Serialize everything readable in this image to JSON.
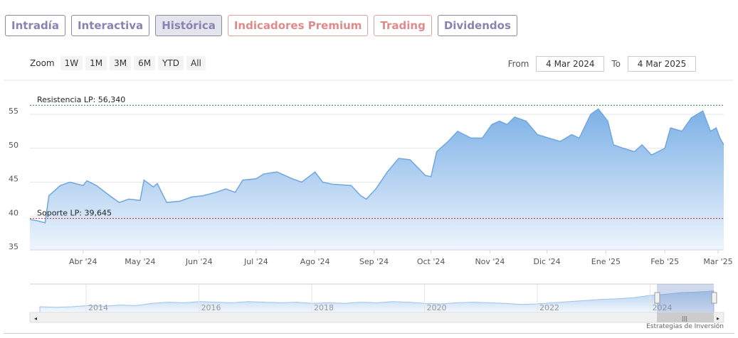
{
  "tabs": [
    {
      "label": "Intradía",
      "style": "normal"
    },
    {
      "label": "Interactiva",
      "style": "normal"
    },
    {
      "label": "Histórica",
      "style": "active"
    },
    {
      "label": "Indicadores Premium",
      "style": "red"
    },
    {
      "label": "Trading",
      "style": "red"
    },
    {
      "label": "Dividendos",
      "style": "normal"
    }
  ],
  "zoom": {
    "label": "Zoom",
    "buttons": [
      "1W",
      "1M",
      "3M",
      "6M",
      "YTD",
      "All"
    ]
  },
  "range": {
    "from_label": "From",
    "from_value": "4 Mar 2024",
    "to_label": "To",
    "to_value": "4 Mar 2025"
  },
  "credit": "Estrategias de Inversión",
  "chart_data": {
    "type": "area",
    "start": "2024-03-04",
    "end": "2025-03-04",
    "ylim": [
      35,
      57
    ],
    "yticks": [
      35,
      40,
      45,
      50,
      55
    ],
    "xticks": [
      {
        "date": "2024-04-01",
        "label": "Abr '24"
      },
      {
        "date": "2024-05-01",
        "label": "May '24"
      },
      {
        "date": "2024-06-01",
        "label": "Jun '24"
      },
      {
        "date": "2024-07-01",
        "label": "Jul '24"
      },
      {
        "date": "2024-08-01",
        "label": "Ago '24"
      },
      {
        "date": "2024-09-01",
        "label": "Sep '24"
      },
      {
        "date": "2024-10-01",
        "label": "Oct '24"
      },
      {
        "date": "2024-11-01",
        "label": "Nov '24"
      },
      {
        "date": "2024-12-01",
        "label": "Dic '24"
      },
      {
        "date": "2025-01-01",
        "label": "Ene '25"
      },
      {
        "date": "2025-02-01",
        "label": "Feb '25"
      },
      {
        "date": "2025-03-01",
        "label": "Mar '25"
      }
    ],
    "lines": [
      {
        "label": "Resistencia LP: 56,340",
        "value": 56.34,
        "color": "#2e7d32"
      },
      {
        "label": "Soporte LP: 39,645",
        "value": 39.645,
        "color": "#c62828"
      }
    ],
    "series": [
      [
        "2024-03-04",
        39.5
      ],
      [
        "2024-03-08",
        39.3
      ],
      [
        "2024-03-12",
        39.0
      ],
      [
        "2024-03-14",
        43
      ],
      [
        "2024-03-20",
        44.5
      ],
      [
        "2024-03-25",
        45
      ],
      [
        "2024-04-01",
        44.5
      ],
      [
        "2024-04-03",
        45.2
      ],
      [
        "2024-04-08",
        44.5
      ],
      [
        "2024-04-15",
        43
      ],
      [
        "2024-04-20",
        42
      ],
      [
        "2024-04-25",
        42.5
      ],
      [
        "2024-05-01",
        42.3
      ],
      [
        "2024-05-03",
        45.3
      ],
      [
        "2024-05-08",
        44.3
      ],
      [
        "2024-05-10",
        44.8
      ],
      [
        "2024-05-15",
        42
      ],
      [
        "2024-05-22",
        42.2
      ],
      [
        "2024-05-28",
        42.8
      ],
      [
        "2024-06-03",
        43
      ],
      [
        "2024-06-10",
        43.5
      ],
      [
        "2024-06-15",
        44
      ],
      [
        "2024-06-20",
        43.5
      ],
      [
        "2024-06-24",
        45.3
      ],
      [
        "2024-07-01",
        45.5
      ],
      [
        "2024-07-05",
        46.2
      ],
      [
        "2024-07-12",
        46.5
      ],
      [
        "2024-07-20",
        45.5
      ],
      [
        "2024-07-25",
        45
      ],
      [
        "2024-08-01",
        46.5
      ],
      [
        "2024-08-05",
        45
      ],
      [
        "2024-08-10",
        44.7
      ],
      [
        "2024-08-20",
        44.5
      ],
      [
        "2024-08-25",
        43
      ],
      [
        "2024-08-28",
        42.5
      ],
      [
        "2024-09-02",
        44
      ],
      [
        "2024-09-08",
        46.5
      ],
      [
        "2024-09-14",
        48.5
      ],
      [
        "2024-09-20",
        48.3
      ],
      [
        "2024-09-28",
        46
      ],
      [
        "2024-10-01",
        45.8
      ],
      [
        "2024-10-04",
        49.5
      ],
      [
        "2024-10-10",
        51
      ],
      [
        "2024-10-15",
        52.5
      ],
      [
        "2024-10-22",
        51.5
      ],
      [
        "2024-10-28",
        51.5
      ],
      [
        "2024-11-02",
        53.5
      ],
      [
        "2024-11-06",
        54
      ],
      [
        "2024-11-10",
        53.5
      ],
      [
        "2024-11-14",
        54.6
      ],
      [
        "2024-11-20",
        54
      ],
      [
        "2024-11-26",
        52
      ],
      [
        "2024-12-02",
        51.5
      ],
      [
        "2024-12-08",
        51
      ],
      [
        "2024-12-14",
        52
      ],
      [
        "2024-12-18",
        51.5
      ],
      [
        "2024-12-24",
        55
      ],
      [
        "2024-12-28",
        55.8
      ],
      [
        "2025-01-02",
        54
      ],
      [
        "2025-01-05",
        50.5
      ],
      [
        "2025-01-10",
        50
      ],
      [
        "2025-01-16",
        49.5
      ],
      [
        "2025-01-20",
        50.5
      ],
      [
        "2025-01-25",
        49
      ],
      [
        "2025-02-01",
        50
      ],
      [
        "2025-02-04",
        53
      ],
      [
        "2025-02-10",
        52.5
      ],
      [
        "2025-02-15",
        54.5
      ],
      [
        "2025-02-21",
        55.5
      ],
      [
        "2025-02-25",
        52.5
      ],
      [
        "2025-02-28",
        53
      ],
      [
        "2025-03-02",
        51.5
      ],
      [
        "2025-03-04",
        50.5
      ]
    ],
    "navigator": {
      "year_labels": [
        "2014",
        "2016",
        "2018",
        "2020",
        "2022",
        "2024"
      ],
      "values": [
        20,
        19,
        20,
        22,
        21,
        23,
        22,
        26,
        28,
        27,
        29,
        28,
        27,
        29,
        28,
        27,
        28,
        26,
        27,
        26,
        28,
        27,
        29,
        28,
        26,
        25,
        27,
        28,
        27,
        26,
        24,
        25,
        27,
        29,
        31,
        33,
        34,
        36,
        40,
        42,
        45,
        46,
        48
      ]
    }
  }
}
